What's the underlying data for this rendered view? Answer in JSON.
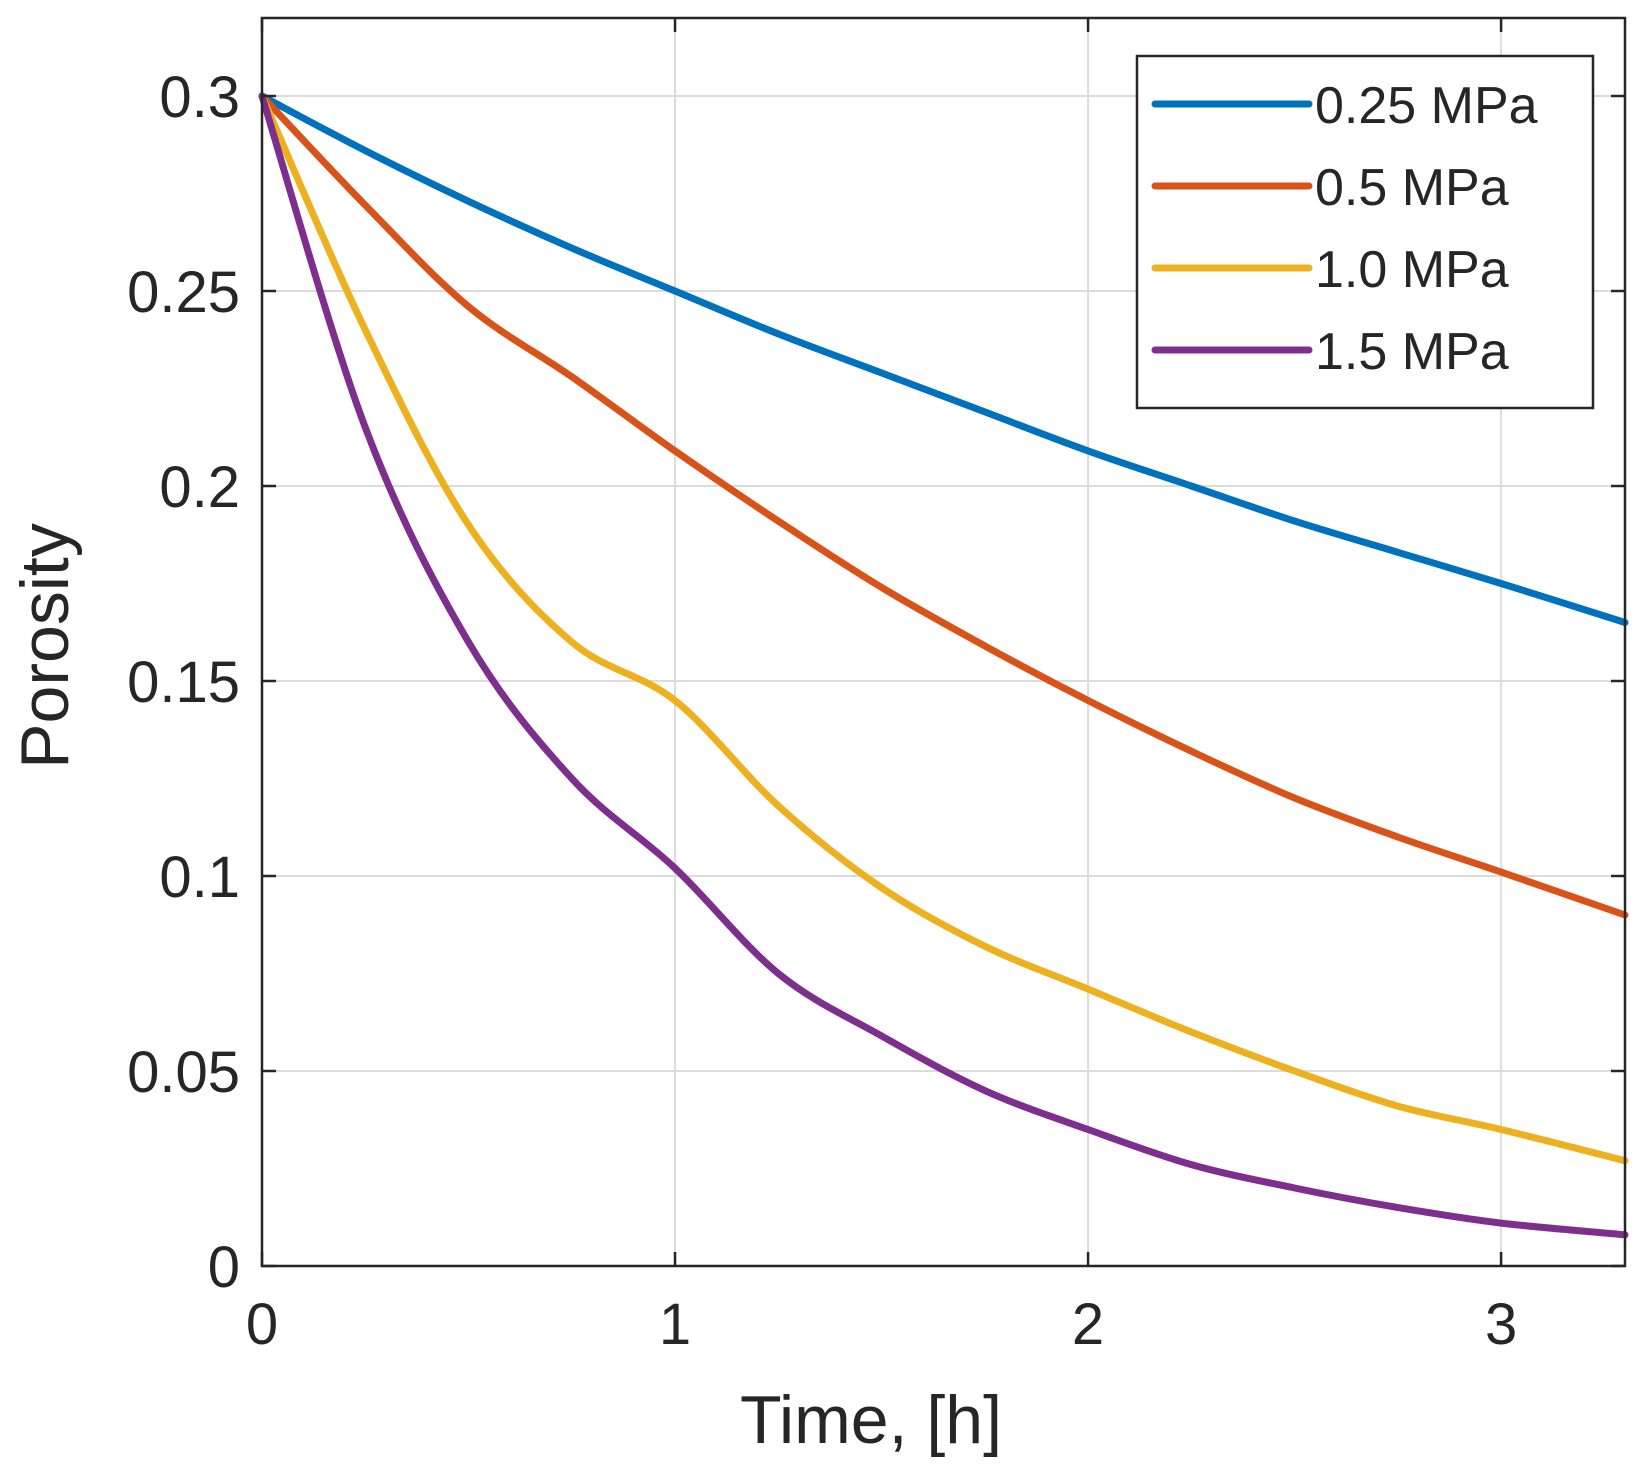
{
  "chart_data": {
    "type": "line",
    "title": "",
    "xlabel": "Time, [h]",
    "ylabel": "Porosity",
    "xlim": [
      0,
      3.3
    ],
    "ylim": [
      0,
      0.32
    ],
    "xticks": [
      0,
      1,
      2,
      3
    ],
    "xtick_labels": [
      "0",
      "1",
      "2",
      "3"
    ],
    "yticks": [
      0,
      0.05,
      0.1,
      0.15,
      0.2,
      0.25,
      0.3
    ],
    "ytick_labels": [
      "0",
      "0.05",
      "0.1",
      "0.15",
      "0.2",
      "0.25",
      "0.3"
    ],
    "grid": true,
    "legend_position": "top-right",
    "x": [
      0,
      0.25,
      0.5,
      0.75,
      1.0,
      1.25,
      1.5,
      1.75,
      2.0,
      2.25,
      2.5,
      2.75,
      3.0,
      3.3
    ],
    "series": [
      {
        "name": "0.25 MPa",
        "color": "#0072BD",
        "values": [
          0.3,
          0.286,
          0.273,
          0.261,
          0.25,
          0.239,
          0.229,
          0.219,
          0.209,
          0.2,
          0.191,
          0.183,
          0.175,
          0.165
        ]
      },
      {
        "name": "0.5 MPa",
        "color": "#D95319",
        "values": [
          0.3,
          0.272,
          0.246,
          0.228,
          0.209,
          0.191,
          0.174,
          0.159,
          0.145,
          0.132,
          0.12,
          0.11,
          0.101,
          0.09
        ]
      },
      {
        "name": "1.0 MPa",
        "color": "#EDB120",
        "values": [
          0.3,
          0.24,
          0.19,
          0.16,
          0.145,
          0.118,
          0.097,
          0.082,
          0.071,
          0.06,
          0.05,
          0.041,
          0.035,
          0.027
        ]
      },
      {
        "name": "1.5 MPa",
        "color": "#7E2F8E",
        "values": [
          0.3,
          0.215,
          0.16,
          0.125,
          0.102,
          0.075,
          0.059,
          0.045,
          0.035,
          0.026,
          0.02,
          0.015,
          0.011,
          0.008
        ]
      }
    ]
  }
}
